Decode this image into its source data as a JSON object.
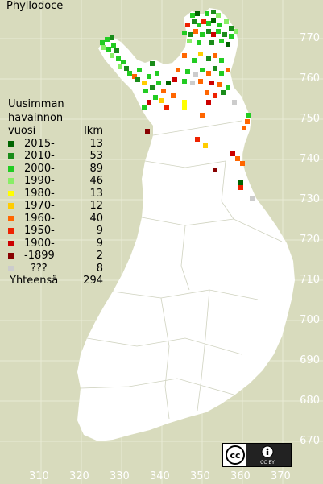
{
  "title": "Phyllodoce",
  "legend": {
    "heading": [
      "Uusimman",
      "havainnon"
    ],
    "col_year": "vuosi",
    "col_count": "lkm",
    "rows": [
      {
        "label": "2015-",
        "count": "13",
        "color": "#006400"
      },
      {
        "label": "2010-",
        "count": "53",
        "color": "#1a8c1a"
      },
      {
        "label": "2000-",
        "count": "89",
        "color": "#22cc22"
      },
      {
        "label": "1990-",
        "count": "46",
        "color": "#88ee66"
      },
      {
        "label": "1980-",
        "count": "13",
        "color": "#ffff00"
      },
      {
        "label": "1970-",
        "count": "12",
        "color": "#ffcc00"
      },
      {
        "label": "1960-",
        "count": "40",
        "color": "#ff6600"
      },
      {
        "label": "1950-",
        "count": "9",
        "color": "#ee2200"
      },
      {
        "label": "1900-",
        "count": "9",
        "color": "#cc0000"
      },
      {
        "label": "-1899",
        "count": "2",
        "color": "#880000"
      },
      {
        "label": "???",
        "count": "8",
        "color": "#cccccc"
      }
    ],
    "total_label": "Yhteensä",
    "total_count": "294"
  },
  "y_axis": [
    "770",
    "760",
    "750",
    "740",
    "730",
    "720",
    "710",
    "700",
    "690",
    "680",
    "670"
  ],
  "x_axis": [
    "310",
    "320",
    "330",
    "340",
    "350",
    "360",
    "370"
  ],
  "license": "CC BY"
}
